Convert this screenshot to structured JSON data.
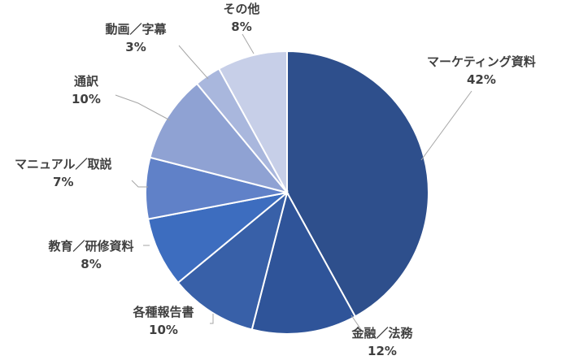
{
  "chart_data": {
    "type": "pie",
    "title": "",
    "categories": [
      "マーケティング資料",
      "金融／法務",
      "各種報告書",
      "教育／研修資料",
      "マニュアル／取説",
      "通訳",
      "動画／字幕",
      "その他"
    ],
    "values": [
      42,
      12,
      10,
      8,
      7,
      10,
      3,
      8
    ],
    "value_labels": [
      "42%",
      "12%",
      "10%",
      "8%",
      "7%",
      "10%",
      "3%",
      "8%"
    ],
    "colors": [
      "#2e4f8c",
      "#2f5499",
      "#3860a8",
      "#3d6dbf",
      "#6081c8",
      "#8fa2d3",
      "#a9b7dd",
      "#c7cfe8"
    ],
    "start_angle_deg": 0,
    "direction": "clockwise",
    "legend": "none",
    "data_labels": "outside-with-leader-lines"
  }
}
